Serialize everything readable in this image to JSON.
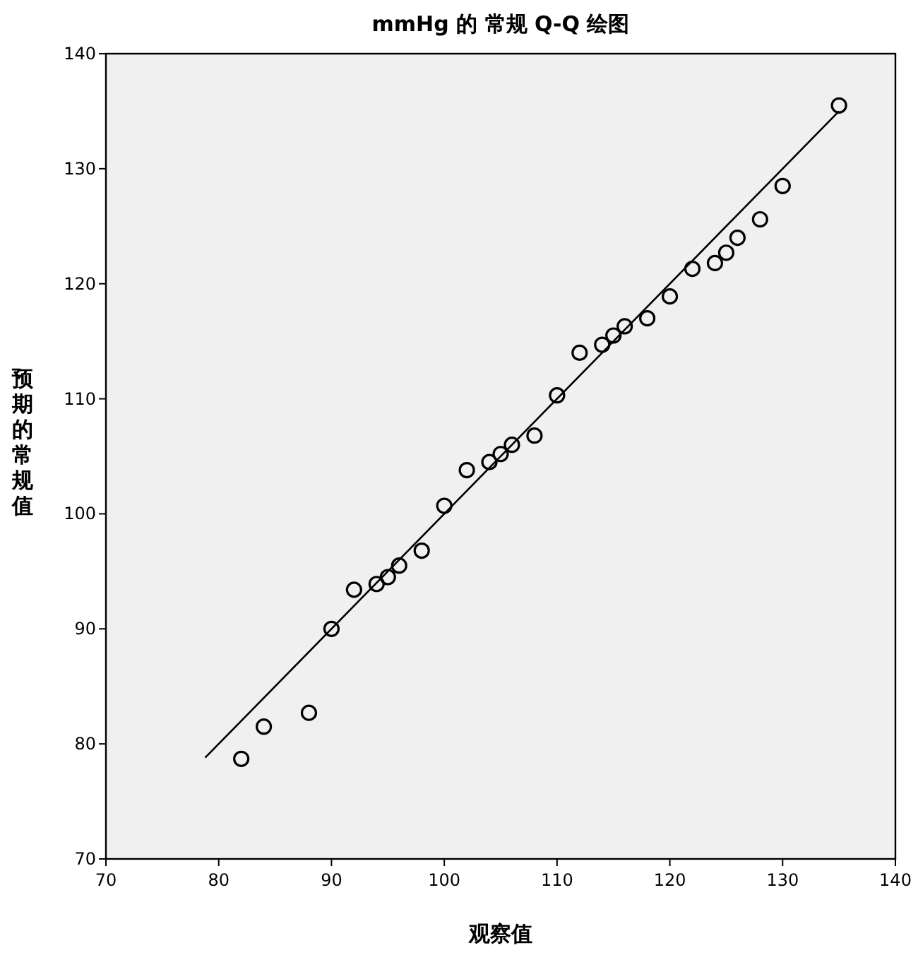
{
  "chart_data": {
    "type": "scatter",
    "title": "mmHg 的 常规 Q-Q 绘图",
    "xlabel": "观察值",
    "ylabel": "预期的常规值",
    "xlim": [
      70,
      140
    ],
    "ylim": [
      70,
      140
    ],
    "xticks": [
      70,
      80,
      90,
      100,
      110,
      120,
      130,
      {
        "value": 140,
        "label": "140"
      }
    ],
    "yticks": [
      70,
      80,
      90,
      100,
      110,
      120,
      130,
      140
    ],
    "grid": false,
    "series": [
      {
        "marker": "circle",
        "color": "#000000",
        "x": [
          82,
          84,
          88,
          90,
          92,
          94,
          95,
          96,
          98,
          100,
          102,
          104,
          105,
          106,
          108,
          110,
          112,
          114,
          115,
          116,
          118,
          120,
          122,
          124,
          125,
          126,
          128,
          130,
          135
        ],
        "values": [
          78.7,
          81.5,
          82.7,
          90,
          93.4,
          93.9,
          94.5,
          95.5,
          96.8,
          100.7,
          103.8,
          104.5,
          105.2,
          106,
          106.8,
          110.3,
          114,
          114.7,
          115.5,
          116.3,
          117,
          118.9,
          121.3,
          121.8,
          122.7,
          124,
          125.6,
          128.5,
          135.5
        ]
      },
      {
        "type": "line",
        "marker": "none",
        "color": "#000000",
        "x": [
          78.8,
          135
        ],
        "values": [
          78.8,
          135
        ]
      }
    ]
  }
}
